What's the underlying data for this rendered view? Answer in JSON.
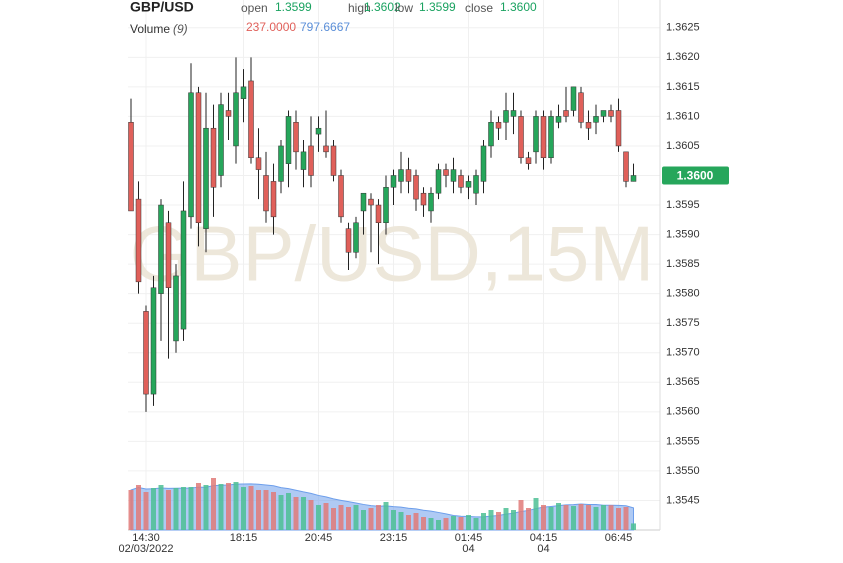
{
  "chart_data": {
    "type": "candlestick",
    "symbol": "GBP/USD",
    "watermark": "GBP/USD,15M",
    "legend": [
      {
        "name": "open",
        "value": 1.3599
      },
      {
        "name": "high",
        "value": 1.3602
      },
      {
        "name": "low",
        "value": 1.3599
      },
      {
        "name": "close",
        "value": 1.36,
        "label": "1.3600"
      }
    ],
    "volume_legend": {
      "name": "Volume",
      "period": "(9)",
      "value": 237,
      "label": "237.0000",
      "ma_value": 797.6667
    },
    "last_price": {
      "value": 1.36,
      "label": "1.3600"
    },
    "up_color": "#26a65b",
    "down_color": "#e0605a",
    "volume_up_color": "#4cbf94",
    "volume_down_color": "#e07a78",
    "volume_ma_color": "#6d9eeb",
    "categories": [
      null,
      null,
      "14:30",
      null,
      null,
      null,
      null,
      null,
      null,
      null,
      null,
      null,
      null,
      null,
      null,
      "18:15",
      null,
      null,
      null,
      null,
      null,
      null,
      null,
      null,
      null,
      "20:45",
      null,
      null,
      null,
      null,
      null,
      null,
      null,
      null,
      null,
      "23:15",
      null,
      null,
      null,
      null,
      null,
      null,
      null,
      null,
      null,
      "01:45",
      null,
      null,
      null,
      null,
      null,
      null,
      null,
      null,
      null,
      "04:15",
      null,
      null,
      null,
      null,
      null,
      null,
      null,
      null,
      null,
      "06:45",
      null,
      null
    ],
    "sublabels": [
      null,
      null,
      "02/03/2022",
      null,
      null,
      null,
      null,
      null,
      null,
      null,
      null,
      null,
      null,
      null,
      null,
      null,
      null,
      null,
      null,
      null,
      null,
      null,
      null,
      null,
      null,
      null,
      null,
      null,
      null,
      null,
      null,
      null,
      null,
      null,
      null,
      null,
      null,
      null,
      null,
      null,
      null,
      null,
      null,
      null,
      null,
      "04",
      null,
      null,
      null,
      null,
      null,
      null,
      null,
      null,
      null,
      "04",
      null,
      null,
      null,
      null,
      null,
      null,
      null,
      null,
      null,
      null,
      null,
      null
    ],
    "open": [
      1.3609,
      1.3596,
      1.3577,
      1.3563,
      1.358,
      1.3592,
      1.3572,
      1.3574,
      1.3593,
      1.3614,
      1.3591,
      1.3608,
      1.36,
      1.3611,
      1.3605,
      1.3613,
      1.3616,
      1.3603,
      1.36,
      1.3599,
      1.3599,
      1.3602,
      1.3609,
      1.3601,
      1.3605,
      1.3607,
      1.3605,
      1.3605,
      1.36,
      1.3591,
      1.3587,
      1.3594,
      1.3596,
      1.3595,
      1.3592,
      1.3598,
      1.3599,
      1.3601,
      1.36,
      1.3597,
      1.3594,
      1.3597,
      1.3601,
      1.3599,
      1.36,
      1.3598,
      1.3597,
      1.3599,
      1.3605,
      1.3609,
      1.3609,
      1.361,
      1.361,
      1.3603,
      1.3604,
      1.361,
      1.3603,
      1.3609,
      1.3611,
      1.3611,
      1.3614,
      1.3609,
      1.3609,
      1.361,
      1.3611,
      1.3611,
      1.3604,
      1.3599
    ],
    "high": [
      1.3613,
      1.3599,
      1.3578,
      1.3583,
      1.3596,
      1.3594,
      1.3585,
      1.3599,
      1.3619,
      1.3615,
      1.3614,
      1.3612,
      1.3614,
      1.3614,
      1.362,
      1.3618,
      1.362,
      1.3608,
      1.3604,
      1.3602,
      1.3606,
      1.3611,
      1.3611,
      1.3606,
      1.361,
      1.361,
      1.3611,
      1.3606,
      1.3601,
      1.3592,
      1.3593,
      1.3597,
      1.3597,
      1.3596,
      1.36,
      1.3601,
      1.3604,
      1.3603,
      1.3601,
      1.3598,
      1.3598,
      1.3602,
      1.3602,
      1.3603,
      1.3601,
      1.36,
      1.3601,
      1.3606,
      1.3611,
      1.361,
      1.3614,
      1.3614,
      1.3611,
      1.3604,
      1.3611,
      1.3611,
      1.3611,
      1.3612,
      1.3615,
      1.3615,
      1.3615,
      1.3611,
      1.3612,
      1.3611,
      1.3612,
      1.3613,
      1.3604,
      1.3602
    ],
    "low": [
      1.3594,
      1.358,
      1.356,
      1.3561,
      1.3572,
      1.3569,
      1.357,
      1.3572,
      1.3591,
      1.3588,
      1.3587,
      1.3593,
      1.3598,
      1.3606,
      1.3602,
      1.3609,
      1.3602,
      1.3596,
      1.3592,
      1.359,
      1.3597,
      1.3598,
      1.3601,
      1.3598,
      1.3598,
      1.3604,
      1.3603,
      1.3599,
      1.3592,
      1.3584,
      1.3586,
      1.359,
      1.3587,
      1.3585,
      1.359,
      1.3595,
      1.3597,
      1.3597,
      1.3594,
      1.3593,
      1.3592,
      1.3596,
      1.3598,
      1.3597,
      1.3597,
      1.3596,
      1.3595,
      1.3597,
      1.3603,
      1.3606,
      1.3606,
      1.3607,
      1.3602,
      1.3601,
      1.3602,
      1.3601,
      1.3602,
      1.3608,
      1.3609,
      1.361,
      1.3608,
      1.3606,
      1.3607,
      1.3609,
      1.3609,
      1.3604,
      1.3598,
      1.3599
    ],
    "close": [
      1.3594,
      1.3582,
      1.3563,
      1.3581,
      1.3595,
      1.3581,
      1.3583,
      1.3594,
      1.3614,
      1.3592,
      1.3608,
      1.3598,
      1.3612,
      1.361,
      1.3614,
      1.3615,
      1.3603,
      1.3601,
      1.3594,
      1.3593,
      1.3605,
      1.361,
      1.3604,
      1.3604,
      1.36,
      1.3608,
      1.3604,
      1.36,
      1.3593,
      1.3587,
      1.3592,
      1.3597,
      1.3595,
      1.3592,
      1.3598,
      1.36,
      1.3601,
      1.3599,
      1.3596,
      1.3595,
      1.3597,
      1.3601,
      1.36,
      1.3601,
      1.3598,
      1.3599,
      1.36,
      1.3605,
      1.3609,
      1.3608,
      1.3611,
      1.3611,
      1.3603,
      1.3602,
      1.361,
      1.3603,
      1.361,
      1.361,
      1.361,
      1.3615,
      1.3609,
      1.3608,
      1.361,
      1.3611,
      1.361,
      1.3605,
      1.3599,
      1.36
    ],
    "volume": [
      1440,
      1620,
      1368,
      1512,
      1620,
      1440,
      1512,
      1548,
      1548,
      1692,
      1620,
      1872,
      1656,
      1692,
      1728,
      1548,
      1584,
      1440,
      1440,
      1368,
      1260,
      1332,
      1188,
      1188,
      1080,
      900,
      972,
      792,
      900,
      828,
      900,
      720,
      792,
      900,
      1008,
      720,
      648,
      540,
      612,
      468,
      432,
      360,
      432,
      504,
      468,
      540,
      432,
      612,
      720,
      648,
      792,
      720,
      1080,
      792,
      1152,
      900,
      828,
      972,
      900,
      864,
      936,
      900,
      828,
      900,
      894,
      792,
      828,
      237
    ],
    "volume_ma": [
      1440,
      1530,
      1476,
      1485,
      1512,
      1500,
      1501.7,
      1507.5,
      1512,
      1540,
      1540,
      1596,
      1612,
      1620,
      1652,
      1656,
      1660,
      1648,
      1620,
      1592,
      1524,
      1488,
      1432,
      1372,
      1320,
      1244,
      1192,
      1120,
      1068,
      1020,
      972,
      920,
      876,
      856,
      868,
      840,
      824,
      784,
      760,
      712,
      680,
      632,
      580,
      524,
      496,
      484,
      472,
      472,
      500,
      524,
      572,
      604,
      668,
      704,
      772,
      824,
      848,
      876,
      904,
      912,
      936,
      916,
      920,
      892,
      891.3,
      887.3,
      871.3,
      797.6667
    ],
    "ylim": [
      1.354,
      1.36297
    ],
    "volume_lim": [
      0,
      2592
    ],
    "yticks": [
      1.3625,
      {
        "value": 1.362,
        "label": "1.3620"
      },
      1.3615,
      {
        "value": 1.361,
        "label": "1.3610"
      },
      1.3605,
      {
        "value": 1.36,
        "label": "1.3600"
      },
      1.3595,
      {
        "value": 1.359,
        "label": "1.3590"
      },
      1.3585,
      {
        "value": 1.358,
        "label": "1.3580"
      },
      1.3575,
      {
        "value": 1.357,
        "label": "1.3570"
      },
      1.3565,
      {
        "value": 1.356,
        "label": "1.3560"
      },
      1.3555,
      {
        "value": 1.355,
        "label": "1.3550"
      },
      1.3545
    ],
    "grid": true
  }
}
